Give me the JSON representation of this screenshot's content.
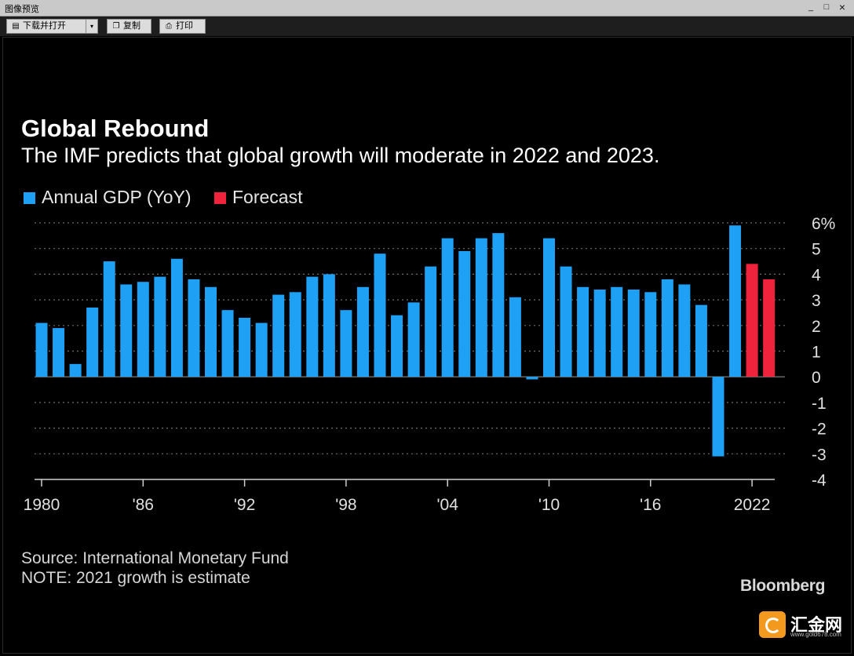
{
  "window": {
    "title": "图像预览",
    "minimize": "_",
    "maximize": "□",
    "close": "×"
  },
  "toolbar": {
    "download_label": "下载并打开",
    "dropdown": "▾",
    "copy_label": "复制",
    "print_label": "打印"
  },
  "chart_data": {
    "type": "bar",
    "title": "Global Rebound",
    "subtitle": "The IMF predicts that global growth will moderate in 2022 and 2023.",
    "legend": [
      {
        "name": "Annual GDP (YoY)",
        "color": "#1ea0f5"
      },
      {
        "name": "Forecast",
        "color": "#f0233c"
      }
    ],
    "x": [
      1980,
      1981,
      1982,
      1983,
      1984,
      1985,
      1986,
      1987,
      1988,
      1989,
      1990,
      1991,
      1992,
      1993,
      1994,
      1995,
      1996,
      1997,
      1998,
      1999,
      2000,
      2001,
      2002,
      2003,
      2004,
      2005,
      2006,
      2007,
      2008,
      2009,
      2010,
      2011,
      2012,
      2013,
      2014,
      2015,
      2016,
      2017,
      2018,
      2019,
      2020,
      2021,
      2022,
      2023
    ],
    "series": [
      {
        "name": "Annual GDP (YoY)",
        "color": "#1ea0f5",
        "values": [
          2.1,
          1.9,
          0.5,
          2.7,
          4.5,
          3.6,
          3.7,
          3.9,
          4.6,
          3.8,
          3.5,
          2.6,
          2.3,
          2.1,
          3.2,
          3.3,
          3.9,
          4.0,
          2.6,
          3.5,
          4.8,
          2.4,
          2.9,
          4.3,
          5.4,
          4.9,
          5.4,
          5.6,
          3.1,
          -0.1,
          5.4,
          4.3,
          3.5,
          3.4,
          3.5,
          3.4,
          3.3,
          3.8,
          3.6,
          2.8,
          -3.1,
          5.9,
          null,
          null
        ]
      },
      {
        "name": "Forecast",
        "color": "#f0233c",
        "values": [
          null,
          null,
          null,
          null,
          null,
          null,
          null,
          null,
          null,
          null,
          null,
          null,
          null,
          null,
          null,
          null,
          null,
          null,
          null,
          null,
          null,
          null,
          null,
          null,
          null,
          null,
          null,
          null,
          null,
          null,
          null,
          null,
          null,
          null,
          null,
          null,
          null,
          null,
          null,
          null,
          null,
          null,
          4.4,
          3.8
        ]
      }
    ],
    "x_tick_labels": [
      {
        "year": 1980,
        "label": "1980"
      },
      {
        "year": 1986,
        "label": "'86"
      },
      {
        "year": 1992,
        "label": "'92"
      },
      {
        "year": 1998,
        "label": "'98"
      },
      {
        "year": 2004,
        "label": "'04"
      },
      {
        "year": 2010,
        "label": "'10"
      },
      {
        "year": 2016,
        "label": "'16"
      },
      {
        "year": 2022,
        "label": "2022"
      }
    ],
    "y_ticks": [
      6,
      5,
      4,
      3,
      2,
      1,
      0,
      -1,
      -2,
      -3,
      -4
    ],
    "y_tick_labels": [
      "6%",
      "5",
      "4",
      "3",
      "2",
      "1",
      "0",
      "-1",
      "-2",
      "-3",
      "-4"
    ],
    "ylim": [
      -4,
      6
    ],
    "grid": true,
    "legend_position": "top-left"
  },
  "footer": {
    "source": "Source: International Monetary Fund",
    "note": "NOTE: 2021 growth is estimate",
    "brand": "Bloomberg"
  },
  "watermark": {
    "text": "汇金网",
    "url": "www.gold678.com"
  }
}
